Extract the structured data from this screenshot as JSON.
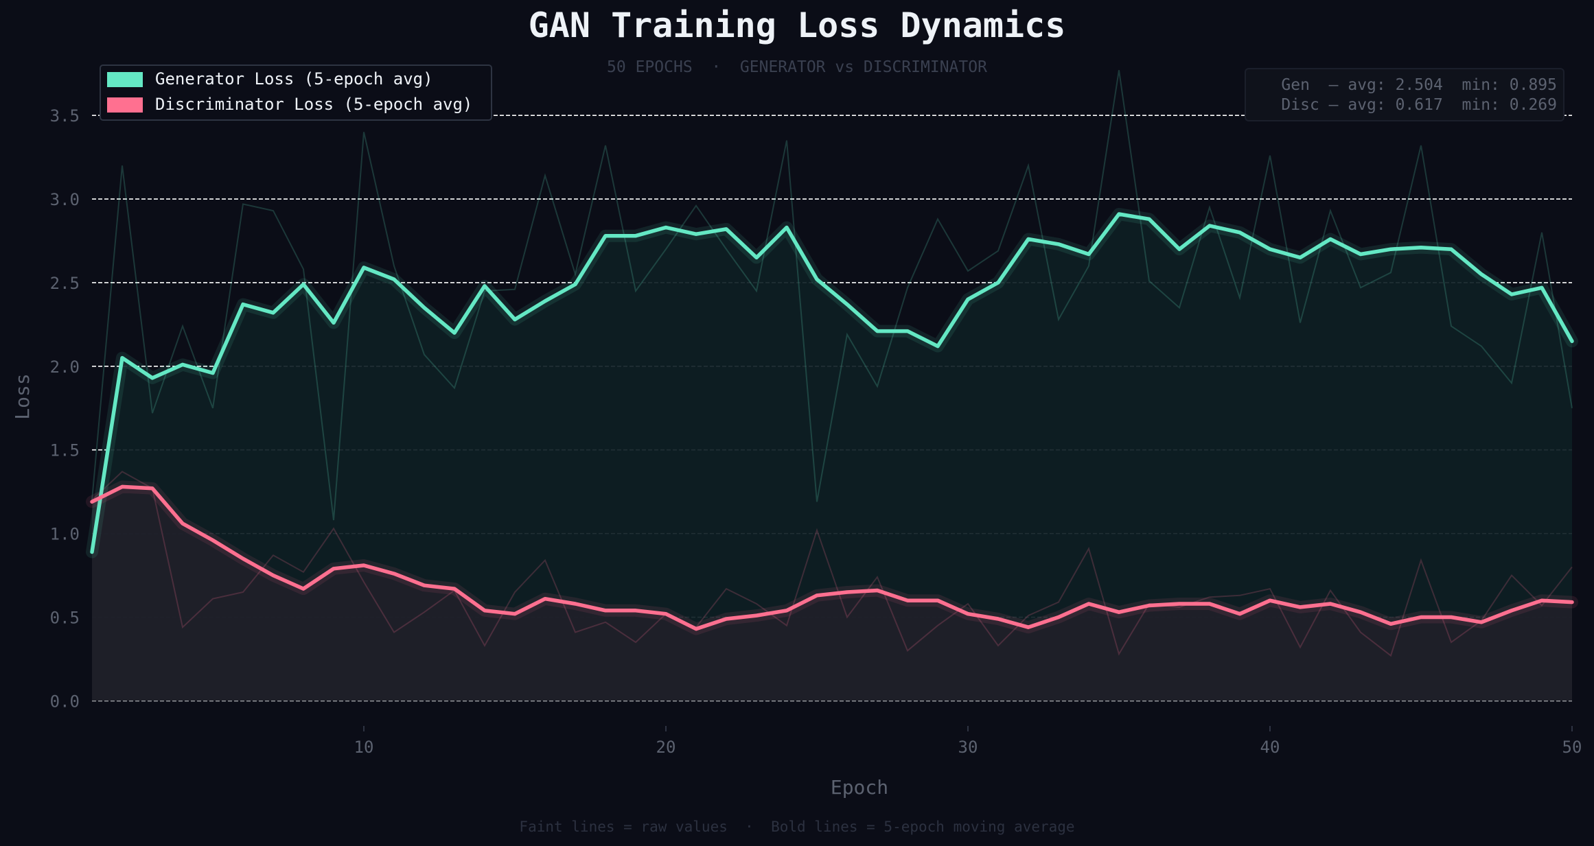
{
  "chart_data": {
    "type": "line",
    "title": "GAN Training Loss Dynamics",
    "subtitle": "50 EPOCHS  ·  GENERATOR vs DISCRIMINATOR",
    "xlabel": "Epoch",
    "ylabel": "Loss",
    "footnote": "Faint lines = raw values  ·  Bold lines = 5-epoch moving average",
    "xlim": [
      1,
      50
    ],
    "ylim": [
      -0.15,
      3.8
    ],
    "x_ticks": [
      10,
      20,
      30,
      40,
      50
    ],
    "y_ticks": [
      0.0,
      0.5,
      1.0,
      1.5,
      2.0,
      2.5,
      3.0,
      3.5
    ],
    "grid": "horizontal dashed",
    "legend_placement": "top-left",
    "stats_box_placement": "top-right",
    "x": [
      1,
      2,
      3,
      4,
      5,
      6,
      7,
      8,
      9,
      10,
      11,
      12,
      13,
      14,
      15,
      16,
      17,
      18,
      19,
      20,
      21,
      22,
      23,
      24,
      25,
      26,
      27,
      28,
      29,
      30,
      31,
      32,
      33,
      34,
      35,
      36,
      37,
      38,
      39,
      40,
      41,
      42,
      43,
      44,
      45,
      46,
      47,
      48,
      49,
      50
    ],
    "series": [
      {
        "name": "Generator Loss (5-epoch avg)",
        "color": "#64e8c4",
        "raw": [
          1.2,
          3.2,
          1.72,
          2.24,
          1.75,
          2.97,
          2.93,
          2.58,
          1.08,
          3.4,
          2.6,
          2.07,
          1.87,
          2.45,
          2.46,
          3.14,
          2.55,
          3.32,
          2.45,
          2.7,
          2.96,
          2.7,
          2.45,
          3.35,
          1.19,
          2.19,
          1.88,
          2.47,
          2.88,
          2.57,
          2.69,
          3.2,
          2.28,
          2.6,
          3.77,
          2.51,
          2.35,
          2.95,
          2.41,
          3.26,
          2.26,
          2.93,
          2.47,
          2.56,
          3.32,
          2.24,
          2.12,
          1.9,
          2.8,
          1.75
        ],
        "smoothed": [
          0.89,
          2.05,
          1.93,
          2.01,
          1.96,
          2.37,
          2.32,
          2.49,
          2.26,
          2.59,
          2.52,
          2.35,
          2.2,
          2.48,
          2.28,
          2.39,
          2.49,
          2.78,
          2.78,
          2.83,
          2.79,
          2.82,
          2.65,
          2.83,
          2.52,
          2.37,
          2.21,
          2.21,
          2.12,
          2.4,
          2.5,
          2.76,
          2.73,
          2.67,
          2.91,
          2.88,
          2.7,
          2.84,
          2.8,
          2.7,
          2.65,
          2.76,
          2.67,
          2.7,
          2.71,
          2.7,
          2.55,
          2.43,
          2.47,
          2.15
        ]
      },
      {
        "name": "Discriminator Loss (5-epoch avg)",
        "color": "#ff7090",
        "raw": [
          1.2,
          1.37,
          1.27,
          0.44,
          0.61,
          0.65,
          0.87,
          0.77,
          1.03,
          0.71,
          0.41,
          0.53,
          0.66,
          0.33,
          0.65,
          0.84,
          0.41,
          0.47,
          0.35,
          0.52,
          0.44,
          0.67,
          0.58,
          0.45,
          1.02,
          0.5,
          0.74,
          0.3,
          0.45,
          0.58,
          0.33,
          0.51,
          0.59,
          0.91,
          0.28,
          0.58,
          0.56,
          0.62,
          0.63,
          0.67,
          0.32,
          0.66,
          0.41,
          0.27,
          0.84,
          0.35,
          0.48,
          0.75,
          0.57,
          0.8
        ],
        "smoothed": [
          1.19,
          1.28,
          1.27,
          1.06,
          0.96,
          0.85,
          0.75,
          0.67,
          0.79,
          0.81,
          0.76,
          0.69,
          0.67,
          0.54,
          0.52,
          0.61,
          0.58,
          0.54,
          0.54,
          0.52,
          0.43,
          0.49,
          0.51,
          0.54,
          0.63,
          0.65,
          0.66,
          0.6,
          0.6,
          0.52,
          0.49,
          0.44,
          0.5,
          0.58,
          0.53,
          0.57,
          0.58,
          0.58,
          0.52,
          0.6,
          0.56,
          0.58,
          0.53,
          0.46,
          0.5,
          0.5,
          0.47,
          0.54,
          0.6,
          0.59
        ]
      }
    ],
    "stats": [
      {
        "label": "Gen  — avg: 2.504  min: 0.895"
      },
      {
        "label": "Disc — avg: 0.617  min: 0.269"
      }
    ]
  }
}
